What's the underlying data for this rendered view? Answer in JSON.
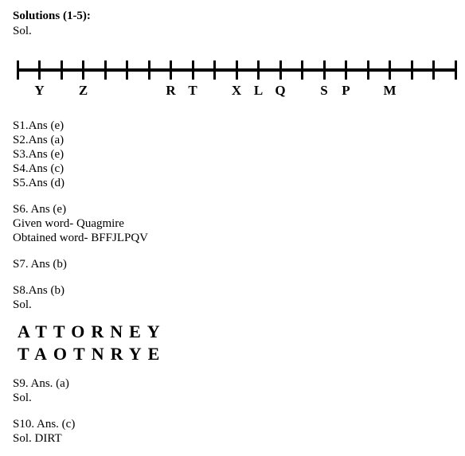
{
  "header": {
    "title": "Solutions (1-5):",
    "sol": "Sol."
  },
  "numberline": {
    "axis_left": 0,
    "axis_width": 550,
    "tick_spacing": 27.5,
    "tick_count": 21,
    "ticks": [
      {
        "pos": 0,
        "label": ""
      },
      {
        "pos": 1,
        "label": "Y"
      },
      {
        "pos": 2,
        "label": ""
      },
      {
        "pos": 3,
        "label": "Z"
      },
      {
        "pos": 4,
        "label": ""
      },
      {
        "pos": 5,
        "label": ""
      },
      {
        "pos": 6,
        "label": ""
      },
      {
        "pos": 7,
        "label": "R"
      },
      {
        "pos": 8,
        "label": "T"
      },
      {
        "pos": 9,
        "label": ""
      },
      {
        "pos": 10,
        "label": "X"
      },
      {
        "pos": 11,
        "label": "L"
      },
      {
        "pos": 12,
        "label": "Q"
      },
      {
        "pos": 13,
        "label": ""
      },
      {
        "pos": 14,
        "label": "S"
      },
      {
        "pos": 15,
        "label": "P"
      },
      {
        "pos": 16,
        "label": ""
      },
      {
        "pos": 17,
        "label": "M"
      },
      {
        "pos": 18,
        "label": ""
      },
      {
        "pos": 19,
        "label": ""
      },
      {
        "pos": 20,
        "label": ""
      }
    ]
  },
  "answers_1_5": [
    "S1.Ans (e)",
    "S2.Ans (a)",
    "S3.Ans (e)",
    "S4.Ans (c)",
    "S5.Ans (d)"
  ],
  "s6": {
    "line": "S6. Ans (e)",
    "given": "Given word- Quagmire",
    "obtained": "Obtained word- BFFJLPQV"
  },
  "s7": {
    "line": "S7. Ans (b)"
  },
  "s8": {
    "line": "S8.Ans (b)",
    "sol": "Sol.",
    "row1": "ATTORNEY",
    "row2": "TAOTNRYE"
  },
  "s9": {
    "line": "S9. Ans. (a)",
    "sol": "Sol."
  },
  "s10": {
    "line": "S10. Ans. (c)",
    "sol": "Sol. DIRT"
  }
}
